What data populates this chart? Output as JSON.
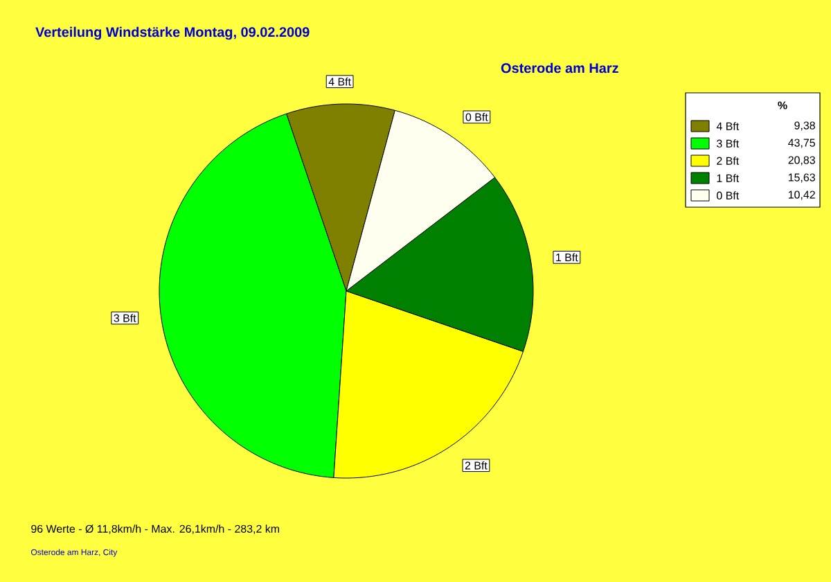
{
  "chart_data": {
    "type": "pie",
    "title": "Verteilung Windstärke  Montag, 09.02.2009",
    "subtitle": "Osterode am Harz",
    "categories": [
      "4 Bft",
      "3 Bft",
      "2 Bft",
      "1 Bft",
      "0 Bft"
    ],
    "values": [
      9.38,
      43.75,
      20.83,
      15.63,
      10.42
    ],
    "value_labels": [
      "9,38",
      "43,75",
      "20,83",
      "15,63",
      "10,42"
    ],
    "colors": [
      "#808000",
      "#00ff00",
      "#ffff00",
      "#008000",
      "#fffff0"
    ],
    "legend": "top right",
    "legend_title": "%",
    "annotations": [
      "96 Werte   -   Ø 11,8km/h  -  Max. 26,1km/h   -   283,2 km",
      "Osterode am Harz, City"
    ]
  }
}
